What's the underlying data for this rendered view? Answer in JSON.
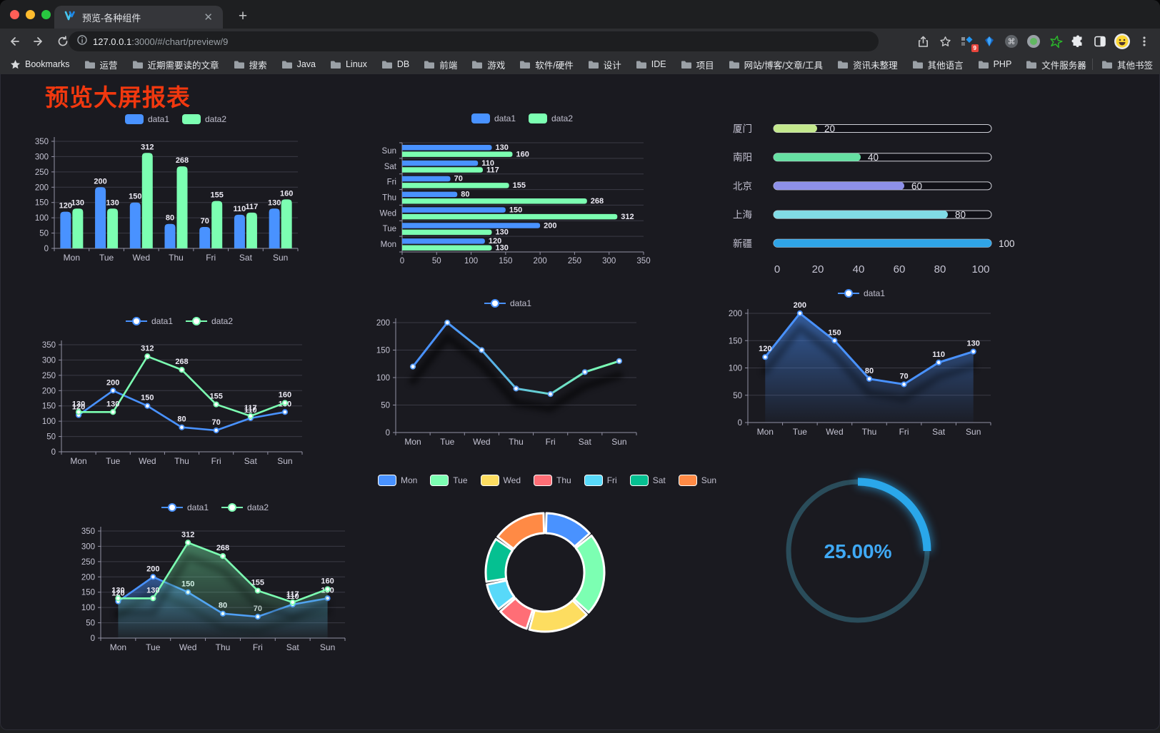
{
  "browser": {
    "tab": {
      "title": "预览-各种组件"
    },
    "url": {
      "host": "127.0.0.1",
      "rest": ":3000/#/chart/preview/9"
    },
    "bookmarks_label": "Bookmarks",
    "bookmark_folders": [
      "运营",
      "近期需要读的文章",
      "搜索",
      "Java",
      "Linux",
      "DB",
      "前端",
      "游戏",
      "软件/硬件",
      "设计",
      "IDE",
      "项目",
      "网站/博客/文章/工具",
      "资讯未整理",
      "其他语言",
      "PHP",
      "文件服务器"
    ],
    "bookmarks_overflow": "»",
    "other_bookmarks": "其他书签",
    "extension_badge": "9"
  },
  "page": {
    "title": "预览大屏报表",
    "title_color": "#f1380f"
  },
  "theme": {
    "background": "#1a1a20",
    "grid_color": "#3a3a45",
    "axis_color": "#9392a5",
    "axis_label_color": "#c4c3d2",
    "value_label_color": "#eceaf4",
    "series_blue": "#4992ff",
    "series_green": "#7cffb2"
  },
  "chart_data": [
    {
      "type": "bar",
      "categories": [
        "Mon",
        "Tue",
        "Wed",
        "Thu",
        "Fri",
        "Sat",
        "Sun"
      ],
      "series": [
        {
          "name": "data1",
          "color": "#4992ff",
          "values": [
            120,
            200,
            150,
            80,
            70,
            110,
            130
          ]
        },
        {
          "name": "data2",
          "color": "#7cffb2",
          "values": [
            130,
            130,
            312,
            268,
            155,
            117,
            160
          ]
        }
      ],
      "ylim": [
        0,
        350
      ],
      "yticks": [
        0,
        50,
        100,
        150,
        200,
        250,
        300,
        350
      ],
      "legend_position": "top",
      "value_labels": true
    },
    {
      "type": "bar-horizontal",
      "categories": [
        "Mon",
        "Tue",
        "Wed",
        "Thu",
        "Fri",
        "Sat",
        "Sun"
      ],
      "category_order_top_to_bottom": [
        "Sun",
        "Sat",
        "Fri",
        "Thu",
        "Wed",
        "Tue",
        "Mon"
      ],
      "series": [
        {
          "name": "data1",
          "color": "#4992ff",
          "values": [
            120,
            200,
            150,
            80,
            70,
            110,
            130
          ]
        },
        {
          "name": "data2",
          "color": "#7cffb2",
          "values": [
            130,
            130,
            312,
            268,
            155,
            117,
            160
          ]
        }
      ],
      "xlim": [
        0,
        350
      ],
      "xticks": [
        0,
        50,
        100,
        150,
        200,
        250,
        300,
        350
      ],
      "legend_position": "top",
      "value_labels": true
    },
    {
      "type": "progress-bars",
      "items": [
        {
          "label": "厦门",
          "value": 20,
          "color": "#c3e88d"
        },
        {
          "label": "南阳",
          "value": 40,
          "color": "#66e0a3"
        },
        {
          "label": "北京",
          "value": 60,
          "color": "#8d90e8"
        },
        {
          "label": "上海",
          "value": 80,
          "color": "#81dce6"
        },
        {
          "label": "新疆",
          "value": 100,
          "color": "#2fa4e7"
        }
      ],
      "max": 100,
      "xticks": [
        0,
        20,
        40,
        60,
        80,
        100
      ]
    },
    {
      "type": "line",
      "categories": [
        "Mon",
        "Tue",
        "Wed",
        "Thu",
        "Fri",
        "Sat",
        "Sun"
      ],
      "series": [
        {
          "name": "data1",
          "color": "#4992ff",
          "values": [
            120,
            200,
            150,
            80,
            70,
            110,
            130
          ]
        },
        {
          "name": "data2",
          "color": "#7cffb2",
          "values": [
            130,
            130,
            312,
            268,
            155,
            117,
            160
          ]
        }
      ],
      "ylim": [
        0,
        350
      ],
      "yticks": [
        0,
        50,
        100,
        150,
        200,
        250,
        300,
        350
      ],
      "legend_position": "top",
      "value_labels": true
    },
    {
      "type": "line-gradient",
      "categories": [
        "Mon",
        "Tue",
        "Wed",
        "Thu",
        "Fri",
        "Sat",
        "Sun"
      ],
      "series": [
        {
          "name": "data1",
          "color_start": "#4992ff",
          "color_end": "#7cffb2",
          "values": [
            120,
            200,
            150,
            80,
            70,
            110,
            130
          ]
        }
      ],
      "ylim": [
        0,
        200
      ],
      "yticks": [
        0,
        50,
        100,
        150,
        200
      ],
      "legend_position": "top",
      "value_labels": false,
      "shadow": true
    },
    {
      "type": "area",
      "categories": [
        "Mon",
        "Tue",
        "Wed",
        "Thu",
        "Fri",
        "Sat",
        "Sun"
      ],
      "series": [
        {
          "name": "data1",
          "color": "#4992ff",
          "values": [
            120,
            200,
            150,
            80,
            70,
            110,
            130
          ]
        }
      ],
      "ylim": [
        0,
        200
      ],
      "yticks": [
        0,
        50,
        100,
        150,
        200
      ],
      "legend_position": "top",
      "value_labels": true
    },
    {
      "type": "area-multi",
      "categories": [
        "Mon",
        "Tue",
        "Wed",
        "Thu",
        "Fri",
        "Sat",
        "Sun"
      ],
      "series": [
        {
          "name": "data1",
          "color": "#4992ff",
          "values": [
            120,
            200,
            150,
            80,
            70,
            110,
            130
          ]
        },
        {
          "name": "data2",
          "color": "#7cffb2",
          "values": [
            130,
            130,
            312,
            268,
            155,
            117,
            160
          ]
        }
      ],
      "ylim": [
        0,
        350
      ],
      "yticks": [
        0,
        50,
        100,
        150,
        200,
        250,
        300,
        350
      ],
      "legend_position": "top",
      "value_labels": true
    },
    {
      "type": "pie",
      "donut": true,
      "items": [
        {
          "label": "Mon",
          "value": 120,
          "color": "#4992ff"
        },
        {
          "label": "Tue",
          "value": 200,
          "color": "#7cffb2"
        },
        {
          "label": "Wed",
          "value": 150,
          "color": "#fddd60"
        },
        {
          "label": "Thu",
          "value": 80,
          "color": "#ff6e76"
        },
        {
          "label": "Fri",
          "value": 70,
          "color": "#58d9f9"
        },
        {
          "label": "Sat",
          "value": 110,
          "color": "#05c091"
        },
        {
          "label": "Sun",
          "value": 130,
          "color": "#ff8a45"
        }
      ],
      "border_color": "#ffffff",
      "legend_position": "top"
    },
    {
      "type": "gauge",
      "value": 25,
      "label": "25.00%",
      "color": "#2aa7ea",
      "track_color": "#2a4c5a",
      "text_color": "#3fa9f5"
    }
  ]
}
